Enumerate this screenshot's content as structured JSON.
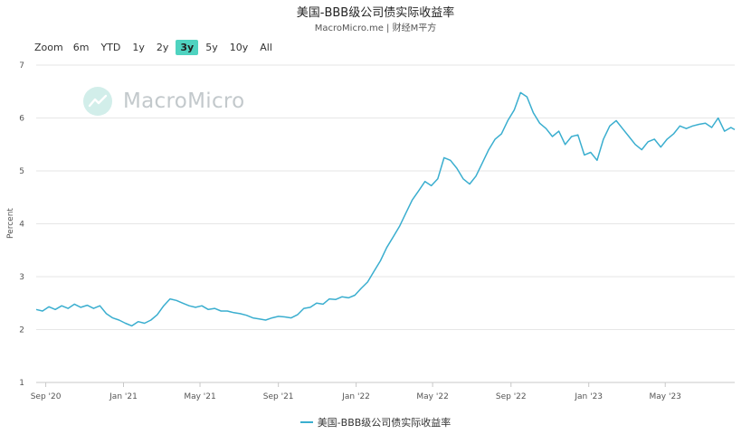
{
  "header": {
    "title": "美国-BBB级公司债实际收益率",
    "subtitle": "MacroMicro.me | 财经M平方"
  },
  "zoom": {
    "label": "Zoom",
    "options": [
      "6m",
      "YTD",
      "1y",
      "2y",
      "3y",
      "5y",
      "10y",
      "All"
    ],
    "active": "3y"
  },
  "watermark": {
    "text": "MacroMicro"
  },
  "legend": {
    "label": "美国-BBB级公司债实际收益率"
  },
  "colors": {
    "series": "#3aaecf",
    "accent": "#4fd3c0",
    "grid": "#e6e6e6"
  },
  "chart_data": {
    "type": "line",
    "ylabel": "Percent",
    "ylim": [
      1,
      7
    ],
    "yticks": [
      "1",
      "2",
      "3",
      "4",
      "5",
      "6",
      "7"
    ],
    "xlim": [
      "2020-08-17",
      "2023-08-18"
    ],
    "xticks": [
      {
        "date": "2020-09-01",
        "label": "Sep '20"
      },
      {
        "date": "2021-01-01",
        "label": "Jan '21"
      },
      {
        "date": "2021-05-01",
        "label": "May '21"
      },
      {
        "date": "2021-09-01",
        "label": "Sep '21"
      },
      {
        "date": "2022-01-01",
        "label": "Jan '22"
      },
      {
        "date": "2022-05-01",
        "label": "May '22"
      },
      {
        "date": "2022-09-01",
        "label": "Sep '22"
      },
      {
        "date": "2023-01-01",
        "label": "Jan '23"
      },
      {
        "date": "2023-05-01",
        "label": "May '23"
      }
    ],
    "grid": true,
    "series": [
      {
        "name": "美国-BBB级公司债实际收益率",
        "x": [
          "2020-08-17",
          "2020-08-27",
          "2020-09-06",
          "2020-09-16",
          "2020-09-26",
          "2020-10-06",
          "2020-10-16",
          "2020-10-26",
          "2020-11-05",
          "2020-11-15",
          "2020-11-25",
          "2020-12-05",
          "2020-12-15",
          "2020-12-25",
          "2021-01-04",
          "2021-01-14",
          "2021-01-24",
          "2021-02-03",
          "2021-02-13",
          "2021-02-23",
          "2021-03-05",
          "2021-03-15",
          "2021-03-25",
          "2021-04-04",
          "2021-04-14",
          "2021-04-24",
          "2021-05-04",
          "2021-05-14",
          "2021-05-24",
          "2021-06-03",
          "2021-06-13",
          "2021-06-23",
          "2021-07-03",
          "2021-07-13",
          "2021-07-23",
          "2021-08-02",
          "2021-08-12",
          "2021-08-22",
          "2021-09-01",
          "2021-09-11",
          "2021-09-21",
          "2021-10-01",
          "2021-10-11",
          "2021-10-21",
          "2021-10-31",
          "2021-11-10",
          "2021-11-20",
          "2021-11-30",
          "2021-12-10",
          "2021-12-20",
          "2021-12-30",
          "2022-01-09",
          "2022-01-19",
          "2022-01-29",
          "2022-02-08",
          "2022-02-18",
          "2022-02-28",
          "2022-03-10",
          "2022-03-20",
          "2022-03-30",
          "2022-04-09",
          "2022-04-19",
          "2022-04-29",
          "2022-05-09",
          "2022-05-19",
          "2022-05-29",
          "2022-06-08",
          "2022-06-18",
          "2022-06-28",
          "2022-07-08",
          "2022-07-18",
          "2022-07-28",
          "2022-08-07",
          "2022-08-17",
          "2022-08-27",
          "2022-09-06",
          "2022-09-16",
          "2022-09-26",
          "2022-10-06",
          "2022-10-16",
          "2022-10-26",
          "2022-11-05",
          "2022-11-15",
          "2022-11-25",
          "2022-12-05",
          "2022-12-15",
          "2022-12-25",
          "2023-01-04",
          "2023-01-14",
          "2023-01-24",
          "2023-02-03",
          "2023-02-13",
          "2023-02-23",
          "2023-03-05",
          "2023-03-15",
          "2023-03-25",
          "2023-04-04",
          "2023-04-14",
          "2023-04-24",
          "2023-05-04",
          "2023-05-14",
          "2023-05-24",
          "2023-06-03",
          "2023-06-13",
          "2023-06-23",
          "2023-07-03",
          "2023-07-13",
          "2023-07-23",
          "2023-08-02",
          "2023-08-12",
          "2023-08-18"
        ],
        "values": [
          2.38,
          2.35,
          2.43,
          2.38,
          2.45,
          2.4,
          2.48,
          2.42,
          2.46,
          2.4,
          2.45,
          2.3,
          2.22,
          2.18,
          2.12,
          2.07,
          2.15,
          2.12,
          2.18,
          2.28,
          2.45,
          2.58,
          2.55,
          2.5,
          2.45,
          2.42,
          2.45,
          2.38,
          2.4,
          2.35,
          2.35,
          2.32,
          2.3,
          2.27,
          2.22,
          2.2,
          2.18,
          2.22,
          2.25,
          2.24,
          2.22,
          2.28,
          2.4,
          2.42,
          2.5,
          2.48,
          2.58,
          2.57,
          2.62,
          2.6,
          2.65,
          2.78,
          2.9,
          3.1,
          3.3,
          3.55,
          3.75,
          3.95,
          4.2,
          4.45,
          4.62,
          4.8,
          4.72,
          4.85,
          5.25,
          5.2,
          5.05,
          4.85,
          4.75,
          4.9,
          5.15,
          5.4,
          5.6,
          5.7,
          5.95,
          6.15,
          6.48,
          6.4,
          6.1,
          5.9,
          5.8,
          5.65,
          5.75,
          5.5,
          5.65,
          5.68,
          5.3,
          5.35,
          5.2,
          5.6,
          5.85,
          5.95,
          5.8,
          5.65,
          5.5,
          5.4,
          5.55,
          5.6,
          5.45,
          5.6,
          5.7,
          5.85,
          5.8,
          5.85,
          5.88,
          5.9,
          5.82,
          6.0,
          5.75,
          5.82,
          5.78
        ]
      }
    ]
  }
}
